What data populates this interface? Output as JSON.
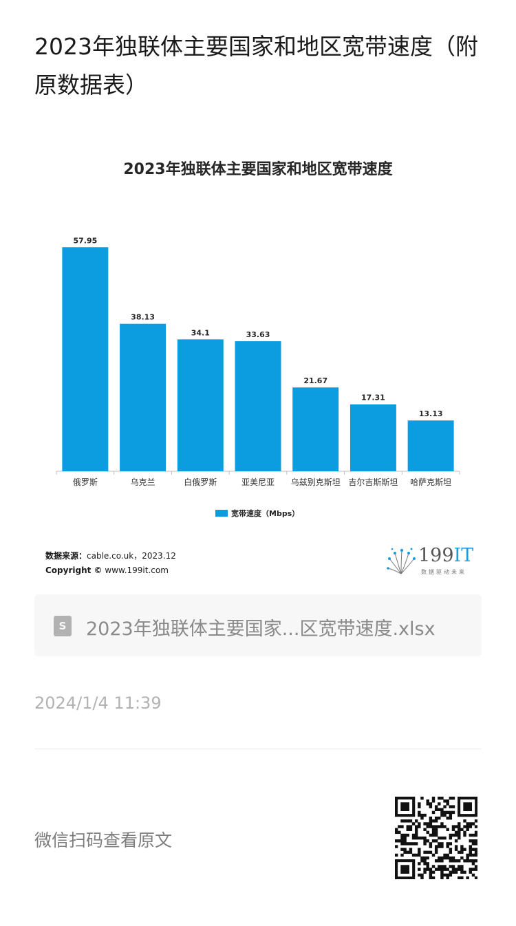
{
  "page": {
    "title": "2023年独联体主要国家和地区宽带速度（附原数据表）"
  },
  "chart_data": {
    "type": "bar",
    "title": "2023年独联体主要国家和地区宽带速度",
    "categories": [
      "俄罗斯",
      "乌克兰",
      "白俄罗斯",
      "亚美尼亚",
      "乌兹别克斯坦",
      "吉尔吉斯斯坦",
      "哈萨克斯坦"
    ],
    "series": [
      {
        "name": "宽带速度（Mbps）",
        "values": [
          57.95,
          38.13,
          34.1,
          33.63,
          21.67,
          17.31,
          13.13
        ],
        "color": "#0b9de0"
      }
    ],
    "xlabel": "",
    "ylabel": "",
    "ylim": [
      0,
      58
    ],
    "grid": false,
    "legend": "bottom",
    "data_labels": true
  },
  "source": {
    "label": "数据来源：",
    "value": "cable.co.uk，2023.12",
    "copyright_label": "Copyright ©",
    "copyright_value": "www.199it.com"
  },
  "brand": {
    "number": "199",
    "suffix": "IT",
    "tagline": "数据驱动未来",
    "accent": "#1e9bd7"
  },
  "file": {
    "icon": "spreadsheet-file-icon",
    "icon_letter": "S",
    "name": "2023年独联体主要国家...区宽带速度.xlsx"
  },
  "timestamp": "2024/1/4 11:39",
  "footer": {
    "scan_text": "微信扫码查看原文",
    "qr_icon": "qr-code-icon"
  }
}
